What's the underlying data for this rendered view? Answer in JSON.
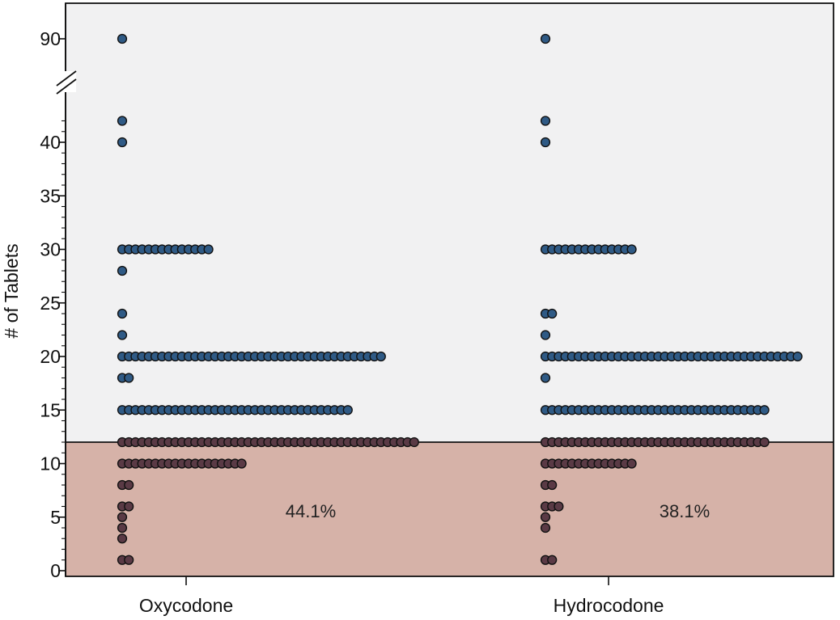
{
  "chart_data": {
    "type": "scatter",
    "subtype": "dot-plot",
    "title": "",
    "xlabel": "",
    "ylabel": "# of Tablets",
    "ylim": [
      0,
      90
    ],
    "axis_break": {
      "between": [
        42,
        90
      ]
    },
    "y_ticks": [
      "0",
      "5",
      "10",
      "15",
      "20",
      "25",
      "30",
      "35",
      "40",
      "90"
    ],
    "threshold": 12,
    "colors": {
      "plot_background": "#f1f1f2",
      "below_threshold_fill": "#d6b2a8",
      "dot_above": "#2f5a85",
      "dot_below": "#5a3a45",
      "dot_stroke": "#111111"
    },
    "categories": [
      "Oxycodone",
      "Hydrocodone"
    ],
    "series": [
      {
        "name": "Oxycodone",
        "percent_below_threshold": "44.1%",
        "counts": [
          {
            "y": 1,
            "n": 2
          },
          {
            "y": 3,
            "n": 1
          },
          {
            "y": 4,
            "n": 1
          },
          {
            "y": 5,
            "n": 1
          },
          {
            "y": 6,
            "n": 2
          },
          {
            "y": 8,
            "n": 2
          },
          {
            "y": 10,
            "n": 19
          },
          {
            "y": 12,
            "n": 45
          },
          {
            "y": 15,
            "n": 35
          },
          {
            "y": 18,
            "n": 2
          },
          {
            "y": 20,
            "n": 40
          },
          {
            "y": 22,
            "n": 1
          },
          {
            "y": 24,
            "n": 1
          },
          {
            "y": 28,
            "n": 1
          },
          {
            "y": 30,
            "n": 14
          },
          {
            "y": 40,
            "n": 1
          },
          {
            "y": 42,
            "n": 1
          },
          {
            "y": 90,
            "n": 1
          }
        ]
      },
      {
        "name": "Hydrocodone",
        "percent_below_threshold": "38.1%",
        "counts": [
          {
            "y": 1,
            "n": 2
          },
          {
            "y": 4,
            "n": 1
          },
          {
            "y": 5,
            "n": 1
          },
          {
            "y": 6,
            "n": 3
          },
          {
            "y": 8,
            "n": 2
          },
          {
            "y": 10,
            "n": 14
          },
          {
            "y": 12,
            "n": 34
          },
          {
            "y": 15,
            "n": 34
          },
          {
            "y": 18,
            "n": 1
          },
          {
            "y": 20,
            "n": 39
          },
          {
            "y": 22,
            "n": 1
          },
          {
            "y": 24,
            "n": 2
          },
          {
            "y": 30,
            "n": 14
          },
          {
            "y": 40,
            "n": 1
          },
          {
            "y": 42,
            "n": 1
          },
          {
            "y": 90,
            "n": 1
          }
        ]
      }
    ]
  }
}
